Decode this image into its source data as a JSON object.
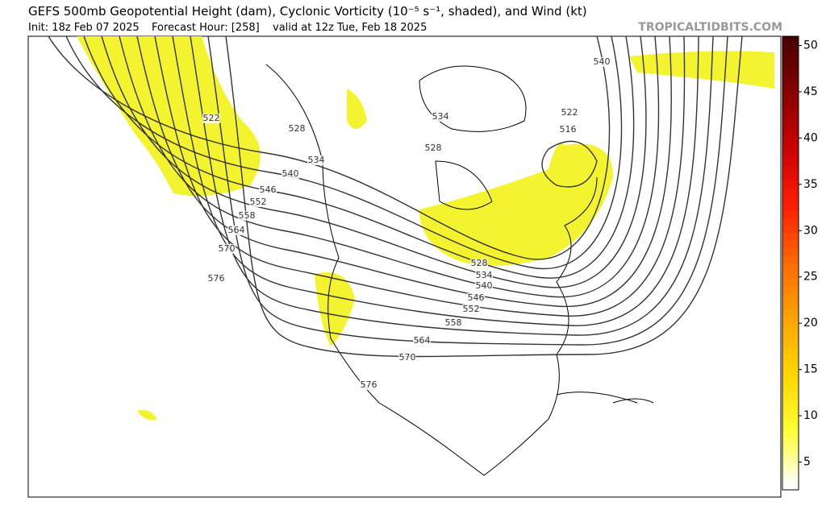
{
  "header": {
    "title": "GEFS 500mb Geopotential Height (dam), Cyclonic Vorticity (10⁻⁵ s⁻¹, shaded), and Wind (kt)",
    "init": "Init: 18z Feb 07 2025",
    "forecast_hour": "Forecast Hour: [258]",
    "valid": "valid at 12z Tue, Feb 18 2025",
    "site": "TROPICALTIDBITS.COM"
  },
  "colorbar": {
    "lim": [
      2,
      51
    ],
    "ticks": [
      5,
      10,
      15,
      20,
      25,
      30,
      35,
      40,
      45,
      50
    ],
    "colors": [
      "#ffffff",
      "#ffff33",
      "#ffd700",
      "#ffa500",
      "#ff6a00",
      "#ff2000",
      "#d00000",
      "#8b0000",
      "#4a0000"
    ]
  },
  "contour_labels": [
    522,
    528,
    534,
    540,
    546,
    552,
    558,
    564,
    570,
    576,
    540,
    522,
    516,
    534,
    528,
    528,
    534,
    540,
    546,
    552,
    558,
    564,
    570,
    576
  ]
}
